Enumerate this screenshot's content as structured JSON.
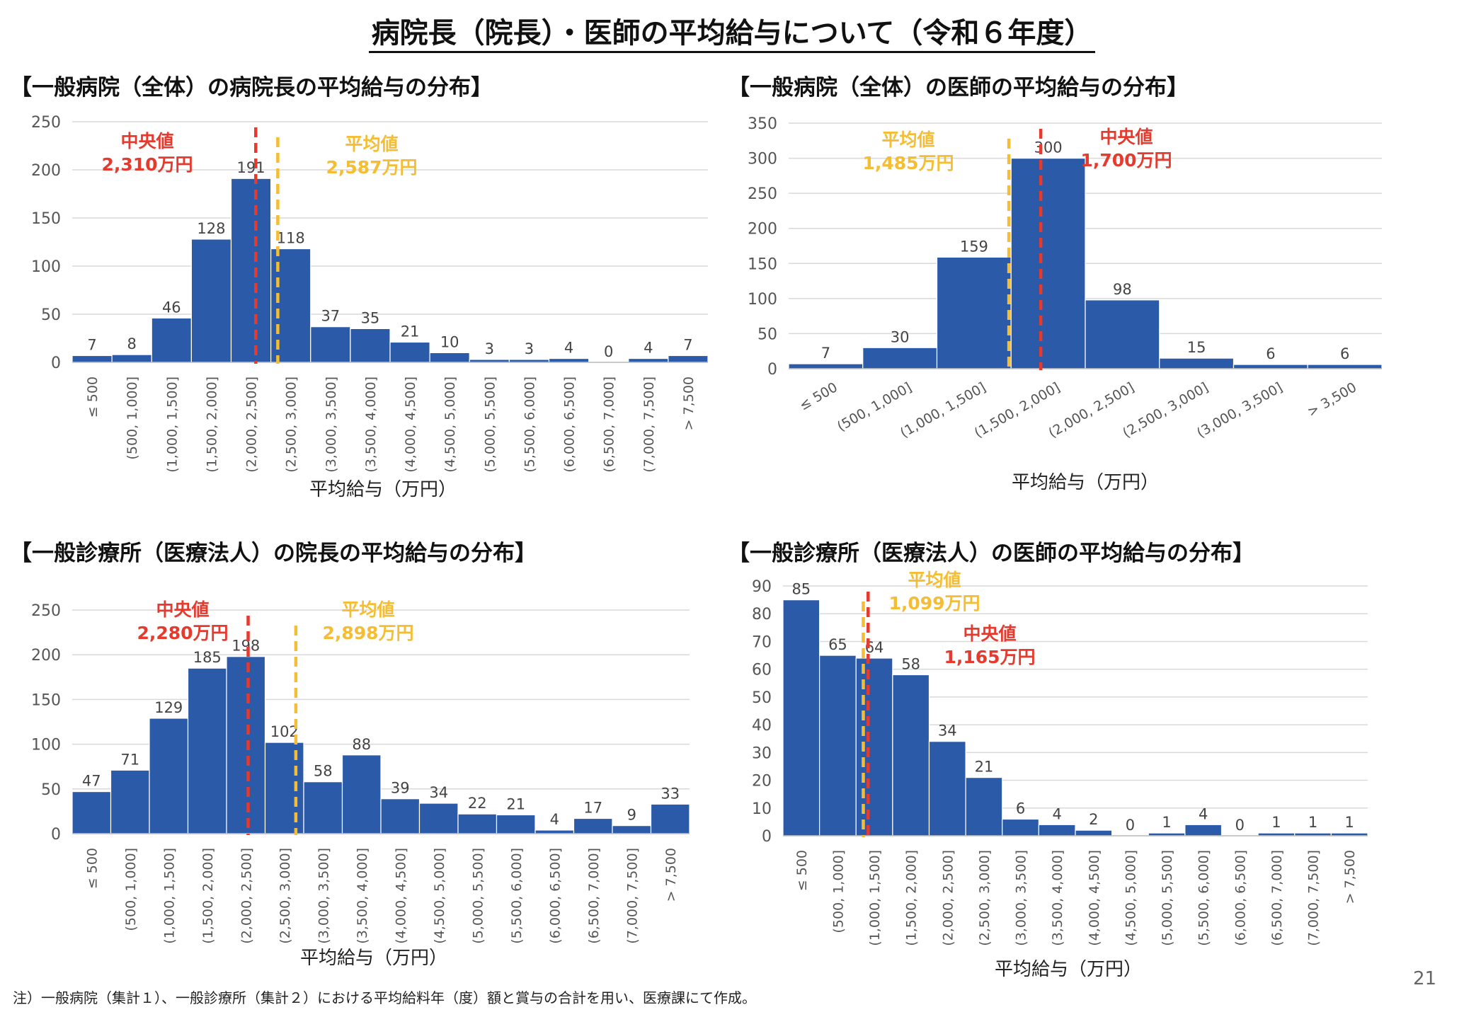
{
  "page": {
    "title": "病院長（院長）・医師の平均給与について（令和６年度）",
    "footnote": "注）一般病院（集計１）、一般診療所（集計２）における平均給料年（度）額と賞与の合計を用い、医療課にて作成。",
    "page_number": "21"
  },
  "colors": {
    "bar": "#2b5aa8",
    "grid": "#d9d9d9",
    "median": "#e53a2e",
    "mean": "#f4bd34"
  },
  "panels": [
    {
      "title": "【一般病院（全体）の病院長の平均給与の分布】"
    },
    {
      "title": "【一般病院（全体）の医師の平均給与の分布】"
    },
    {
      "title": "【一般診療所（医療法人）の院長の平均給与の分布】"
    },
    {
      "title": "【一般診療所（医療法人）の医師の平均給与の分布】"
    }
  ],
  "chart_data": [
    {
      "type": "bar",
      "title": "【一般病院（全体）の病院長の平均給与の分布】",
      "xlabel": "平均給与（万円）",
      "ylabel": "",
      "ylim": [
        0,
        250
      ],
      "yticks": [
        0,
        50,
        100,
        150,
        200,
        250
      ],
      "tick_rotation": "vertical",
      "grid": true,
      "categories": [
        "≤ 500",
        "(500, 1,000]",
        "(1,000, 1,500]",
        "(1,500, 2,000]",
        "(2,000, 2,500]",
        "(2,500, 3,000]",
        "(3,000, 3,500]",
        "(3,500, 4,000]",
        "(4,000, 4,500]",
        "(4,500, 5,000]",
        "(5,000, 5,500]",
        "(5,500, 6,000]",
        "(6,000, 6,500]",
        "(6,500, 7,000]",
        "(7,000, 7,500]",
        "> 7,500"
      ],
      "values": [
        7,
        8,
        46,
        128,
        191,
        118,
        37,
        35,
        21,
        10,
        3,
        3,
        4,
        0,
        4,
        7
      ],
      "value_labels": [
        "7",
        "8",
        "46",
        "128",
        "191",
        "118",
        "37",
        "35",
        "21",
        "10",
        "3",
        "3",
        "4",
        "0",
        "4",
        "7"
      ],
      "lines": [
        {
          "kind": "median",
          "label": "中央値",
          "value_label": "2,310万円",
          "x_value": 2310
        },
        {
          "kind": "mean",
          "label": "平均値",
          "value_label": "2,587万円",
          "x_value": 2587
        }
      ]
    },
    {
      "type": "bar",
      "title": "【一般病院（全体）の医師の平均給与の分布】",
      "xlabel": "平均給与（万円）",
      "ylabel": "",
      "ylim": [
        0,
        350
      ],
      "yticks": [
        0,
        50,
        100,
        150,
        200,
        250,
        300,
        350
      ],
      "tick_rotation": "diagonal",
      "grid": true,
      "categories": [
        "≤ 500",
        "(500, 1,000]",
        "(1,000, 1,500]",
        "(1,500, 2,000]",
        "(2,000, 2,500]",
        "(2,500, 3,000]",
        "(3,000, 3,500]",
        "> 3,500"
      ],
      "values": [
        7,
        30,
        159,
        300,
        98,
        15,
        6,
        6
      ],
      "value_labels": [
        "7",
        "30",
        "159",
        "300",
        "98",
        "15",
        "6",
        "6"
      ],
      "lines": [
        {
          "kind": "mean",
          "label": "平均値",
          "value_label": "1,485万円",
          "x_value": 1485
        },
        {
          "kind": "median",
          "label": "中央値",
          "value_label": "1,700万円",
          "x_value": 1700
        }
      ]
    },
    {
      "type": "bar",
      "title": "【一般診療所（医療法人）の院長の平均給与の分布】",
      "xlabel": "平均給与（万円）",
      "ylabel": "",
      "ylim": [
        0,
        250
      ],
      "yticks": [
        0,
        50,
        100,
        150,
        200,
        250
      ],
      "tick_rotation": "vertical",
      "grid": true,
      "categories": [
        "≤ 500",
        "(500, 1,000]",
        "(1,000, 1,500]",
        "(1,500, 2,000]",
        "(2,000, 2,500]",
        "(2,500, 3,000]",
        "(3,000, 3,500]",
        "(3,500, 4,000]",
        "(4,000, 4,500]",
        "(4,500, 5,000]",
        "(5,000, 5,500]",
        "(5,500, 6,000]",
        "(6,000, 6,500]",
        "(6,500, 7,000]",
        "(7,000, 7,500]",
        "> 7,500"
      ],
      "values": [
        47,
        71,
        129,
        185,
        198,
        102,
        58,
        88,
        39,
        34,
        22,
        21,
        4,
        17,
        9,
        33
      ],
      "value_labels": [
        "47",
        "71",
        "129",
        "185",
        "198",
        "102",
        "58",
        "88",
        "39",
        "34",
        "22",
        "21",
        "4",
        "17",
        "9",
        "33"
      ],
      "lines": [
        {
          "kind": "median",
          "label": "中央値",
          "value_label": "2,280万円",
          "x_value": 2280
        },
        {
          "kind": "mean",
          "label": "平均値",
          "value_label": "2,898万円",
          "x_value": 2898
        }
      ]
    },
    {
      "type": "bar",
      "title": "【一般診療所（医療法人）の医師の平均給与の分布】",
      "xlabel": "平均給与（万円）",
      "ylabel": "",
      "ylim": [
        0,
        90
      ],
      "yticks": [
        0,
        10,
        20,
        30,
        40,
        50,
        60,
        70,
        80,
        90
      ],
      "tick_rotation": "vertical",
      "grid": true,
      "categories": [
        "≤ 500",
        "(500, 1,000]",
        "(1,000, 1,500]",
        "(1,500, 2,000]",
        "(2,000, 2,500]",
        "(2,500, 3,000]",
        "(3,000, 3,500]",
        "(3,500, 4,000]",
        "(4,000, 4,500]",
        "(4,500, 5,000]",
        "(5,000, 5,500]",
        "(5,500, 6,000]",
        "(6,000, 6,500]",
        "(6,500, 7,000]",
        "(7,000, 7,500]",
        "> 7,500"
      ],
      "values": [
        85,
        65,
        64,
        58,
        34,
        21,
        6,
        4,
        2,
        0,
        1,
        4,
        0,
        1,
        1,
        1
      ],
      "value_labels": [
        "85",
        "65",
        "64",
        "58",
        "34",
        "21",
        "6",
        "4",
        "2",
        "0",
        "1",
        "4",
        "0",
        "1",
        "1",
        "1"
      ],
      "lines": [
        {
          "kind": "mean",
          "label": "平均値",
          "value_label": "1,099万円",
          "x_value": 1099
        },
        {
          "kind": "median",
          "label": "中央値",
          "value_label": "1,165万円",
          "x_value": 1165
        }
      ]
    }
  ]
}
